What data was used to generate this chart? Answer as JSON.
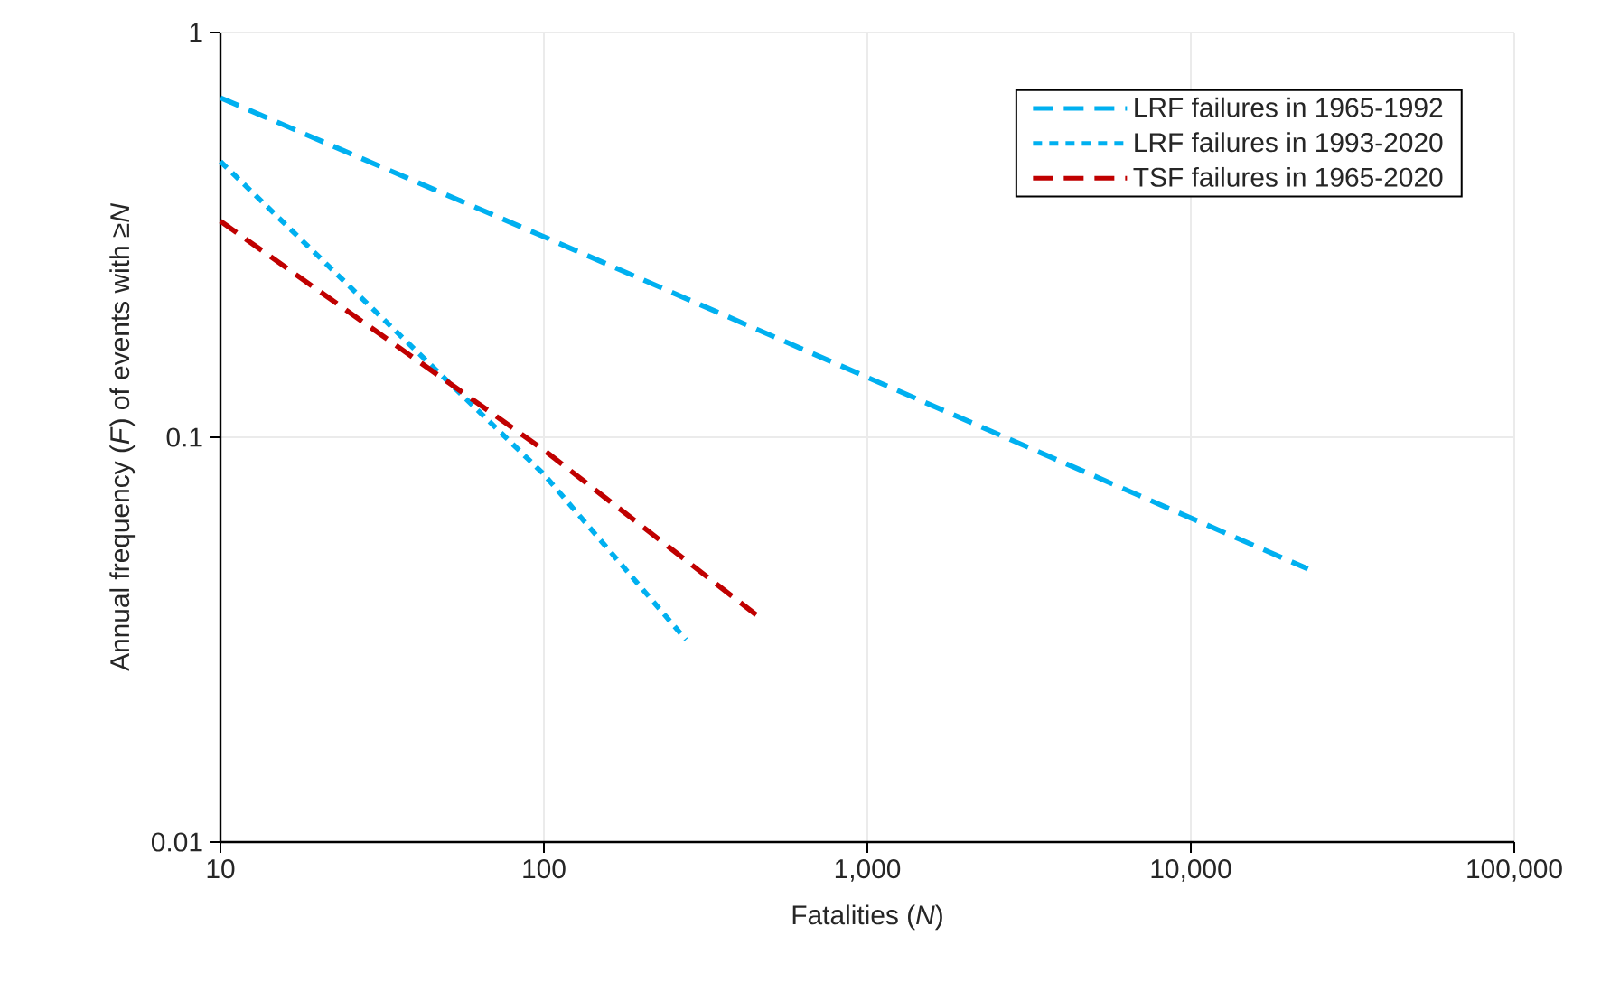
{
  "chart_data": {
    "type": "line",
    "xlabel": "Fatalities (*N*)",
    "ylabel": "Annual frequency (*F*) of events with ≥*N*",
    "log": "xy",
    "grid": true,
    "legend": "top right",
    "xlim": [
      10,
      100000
    ],
    "ylim": [
      0.01,
      1
    ],
    "xticks": [
      10,
      100,
      {
        "value": 1000,
        "label": "1,000"
      },
      {
        "value": 10000,
        "label": "10,000"
      },
      {
        "value": 100000,
        "label": "100,000"
      }
    ],
    "yticks": [
      0.01,
      0.1,
      1
    ],
    "series": [
      {
        "name": "LRF failures in 1965-1992",
        "color": "#00b0f0",
        "line_style": "dashed",
        "x": [
          10,
          100,
          23000
        ],
        "values": [
          0.69,
          0.313,
          0.0473
        ]
      },
      {
        "name": "LRF failures in 1993-2020",
        "color": "#00b0f0",
        "line_style": "dotted",
        "x": [
          10,
          100,
          275
        ],
        "values": [
          0.48,
          0.081,
          0.0316
        ]
      },
      {
        "name": "TSF failures in 1965-2020",
        "color": "#c00000",
        "line_style": "dashed",
        "x": [
          10,
          100,
          472
        ],
        "values": [
          0.342,
          0.093,
          0.0355
        ]
      }
    ]
  }
}
